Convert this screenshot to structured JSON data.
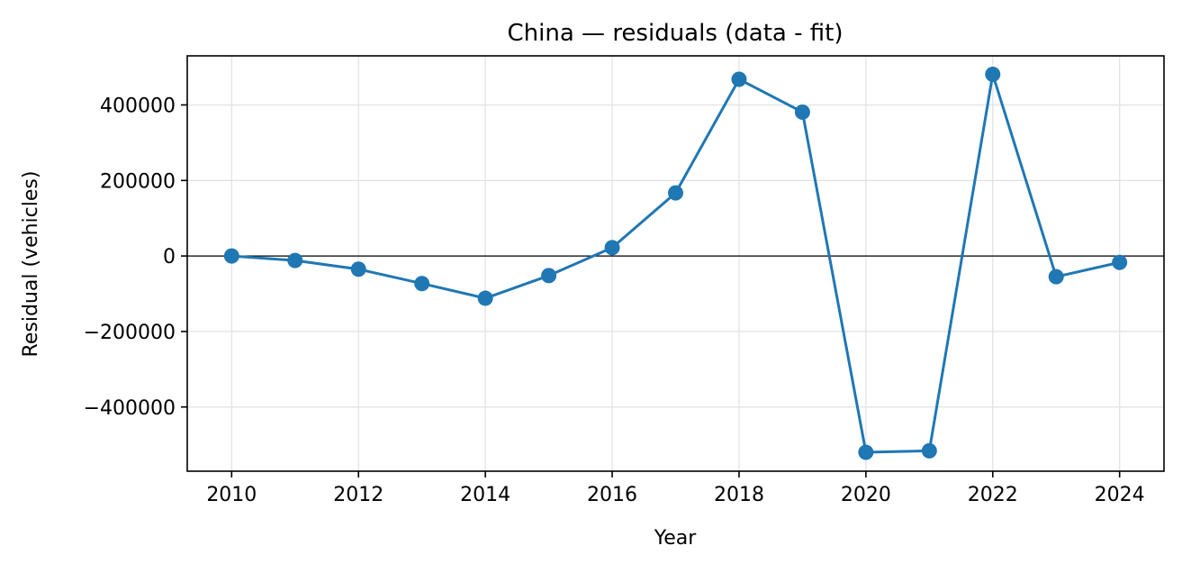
{
  "chart_data": {
    "type": "line",
    "title": "China — residuals (data - fit)",
    "xlabel": "Year",
    "ylabel": "Residual (vehicles)",
    "xlim": [
      2009.3,
      2024.7
    ],
    "ylim": [
      -570000,
      530000
    ],
    "xticks": [
      2010,
      2012,
      2014,
      2016,
      2018,
      2020,
      2022,
      2024
    ],
    "xtick_labels": [
      "2010",
      "2012",
      "2014",
      "2016",
      "2018",
      "2020",
      "2022",
      "2024"
    ],
    "yticks": [
      -400000,
      -200000,
      0,
      200000,
      400000
    ],
    "ytick_labels": [
      "−400000",
      "−200000",
      "0",
      "200000",
      "400000"
    ],
    "grid": true,
    "zero_line": true,
    "series": [
      {
        "color": "#1f77b4",
        "x": [
          2010,
          2011,
          2012,
          2013,
          2014,
          2015,
          2016,
          2017,
          2018,
          2019,
          2020,
          2021,
          2022,
          2023,
          2024
        ],
        "y": [
          0,
          -12000,
          -35000,
          -73000,
          -112000,
          -52000,
          22000,
          167000,
          468000,
          381000,
          -520000,
          -516000,
          481000,
          -55000,
          -17000
        ]
      }
    ]
  }
}
